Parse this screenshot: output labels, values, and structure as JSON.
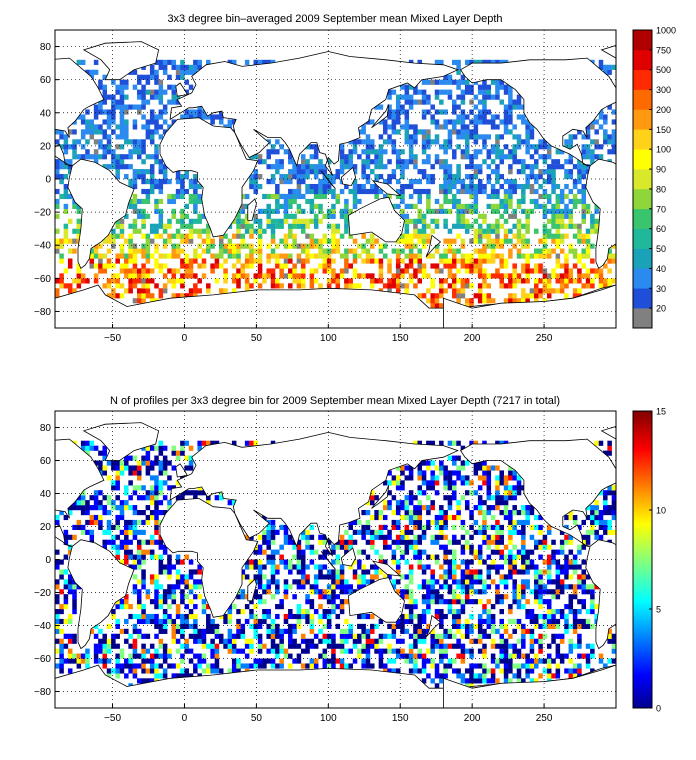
{
  "figure": {
    "panels": [
      {
        "title": "3x3 degree bin–averaged 2009 September mean Mixed Layer Depth",
        "colorbar_ticks": [
          "20",
          "30",
          "40",
          "50",
          "60",
          "70",
          "80",
          "90",
          "100",
          "150",
          "200",
          "300",
          "500",
          "750",
          "1000"
        ]
      },
      {
        "title": "N of profiles per 3x3 degree bin for 2009 September mean Mixed Layer Depth  (7217 in total)",
        "colorbar_ticks": [
          "0",
          "5",
          "10",
          "15"
        ]
      }
    ],
    "colors": {
      "background": "#ffffff",
      "grid": "#000000",
      "land_outline": "#000000",
      "missing_value": "#808080",
      "mld_classes": [
        "#808080",
        "#1f4fd8",
        "#2a8af0",
        "#1aa3b8",
        "#20b89a",
        "#3ac46e",
        "#8fd63a",
        "#d8e82a",
        "#ffff00",
        "#ffd21a",
        "#ff9a10",
        "#ff6a00",
        "#ff2a00",
        "#e00000",
        "#b00000"
      ],
      "jet_low": "#00008f",
      "jet_high": "#800000"
    }
  },
  "chart_data": [
    {
      "type": "heatmap",
      "title": "3x3 degree bin–averaged 2009 September mean Mixed Layer Depth",
      "xlabel": "",
      "ylabel": "",
      "xlim": [
        -90,
        300
      ],
      "ylim": [
        -90,
        90
      ],
      "xticks": [
        -50,
        0,
        50,
        100,
        150,
        200,
        250
      ],
      "yticks": [
        -80,
        -60,
        -40,
        -20,
        0,
        20,
        40,
        60,
        80
      ],
      "grid": true,
      "bin_size_degrees": 3,
      "colorbar": {
        "position": "right",
        "scale": "discrete",
        "ticks": [
          20,
          30,
          40,
          50,
          60,
          70,
          80,
          90,
          100,
          150,
          200,
          300,
          500,
          750,
          1000
        ]
      },
      "bands_approx": [
        {
          "lat_range": [
            30,
            70
          ],
          "typical_value": 30
        },
        {
          "lat_range": [
            -10,
            30
          ],
          "typical_value": 30
        },
        {
          "lat_range": [
            -25,
            -10
          ],
          "typical_value": 80
        },
        {
          "lat_range": [
            -50,
            -35
          ],
          "typical_value": 100
        },
        {
          "lat_range": [
            -60,
            -50
          ],
          "typical_value": 200
        }
      ]
    },
    {
      "type": "heatmap",
      "title": "N of profiles per 3x3 degree bin for 2009 September mean Mixed Layer Depth  (7217 in total)",
      "xlabel": "",
      "ylabel": "",
      "xlim": [
        -90,
        300
      ],
      "ylim": [
        -90,
        90
      ],
      "xticks": [
        -50,
        0,
        50,
        100,
        150,
        200,
        250
      ],
      "yticks": [
        -80,
        -60,
        -40,
        -20,
        0,
        20,
        40,
        60,
        80
      ],
      "grid": true,
      "bin_size_degrees": 3,
      "total_profiles": 7217,
      "colorbar": {
        "position": "right",
        "scale": "continuous",
        "colormap": "jet",
        "range": [
          0,
          15
        ],
        "ticks": [
          0,
          5,
          10,
          15
        ]
      },
      "typical_value": 2
    }
  ]
}
